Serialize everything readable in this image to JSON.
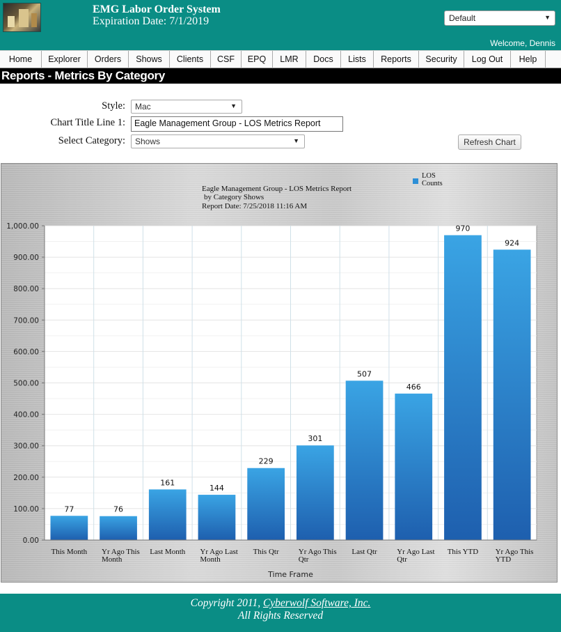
{
  "header": {
    "title": "EMG Labor Order System",
    "expiration": "Expiration Date: 7/1/2019",
    "profile_select": "Default",
    "welcome": "Welcome, Dennis"
  },
  "nav": {
    "items": [
      "Home",
      "Explorer",
      "Orders",
      "Shows",
      "Clients",
      "CSF",
      "EPQ",
      "LMR",
      "Docs",
      "Lists",
      "Reports",
      "Security",
      "Log Out",
      "Help"
    ]
  },
  "page": {
    "title": "Reports - Metrics By Category"
  },
  "form": {
    "style_label": "Style:",
    "style_value": "Mac",
    "chart_title_label": "Chart Title Line 1:",
    "chart_title_value": "Eagle Management Group - LOS Metrics Report",
    "category_label": "Select Category:",
    "category_value": "Shows",
    "refresh_button": "Refresh Chart"
  },
  "chart_data": {
    "type": "bar",
    "title": "Eagle Management Group - LOS Metrics Report",
    "subtitle": "by Category Shows",
    "report_date": "Report Date: 7/25/2018 11:16 AM",
    "legend": "top-right",
    "series": [
      {
        "name": "LOS Counts",
        "values": [
          77,
          76,
          161,
          144,
          229,
          301,
          507,
          466,
          970,
          924
        ]
      }
    ],
    "categories": [
      "This Month",
      "Yr Ago This Month",
      "Last Month",
      "Yr Ago Last Month",
      "This Qtr",
      "Yr Ago This Qtr",
      "Last Qtr",
      "Yr Ago Last Qtr",
      "This YTD",
      "Yr Ago This YTD"
    ],
    "xlabel": "Time Frame",
    "ylabel": "",
    "ylim": [
      0,
      1000
    ],
    "yticks": [
      "0.00",
      "100.00",
      "200.00",
      "300.00",
      "400.00",
      "500.00",
      "600.00",
      "700.00",
      "800.00",
      "900.00",
      "1,000.00"
    ],
    "grid": true,
    "bar_color": "#2d8fd6"
  },
  "footer": {
    "copyright": "Copyright 2011,",
    "company": "Cyberwolf Software, Inc.",
    "rights": "All Rights Reserved"
  }
}
